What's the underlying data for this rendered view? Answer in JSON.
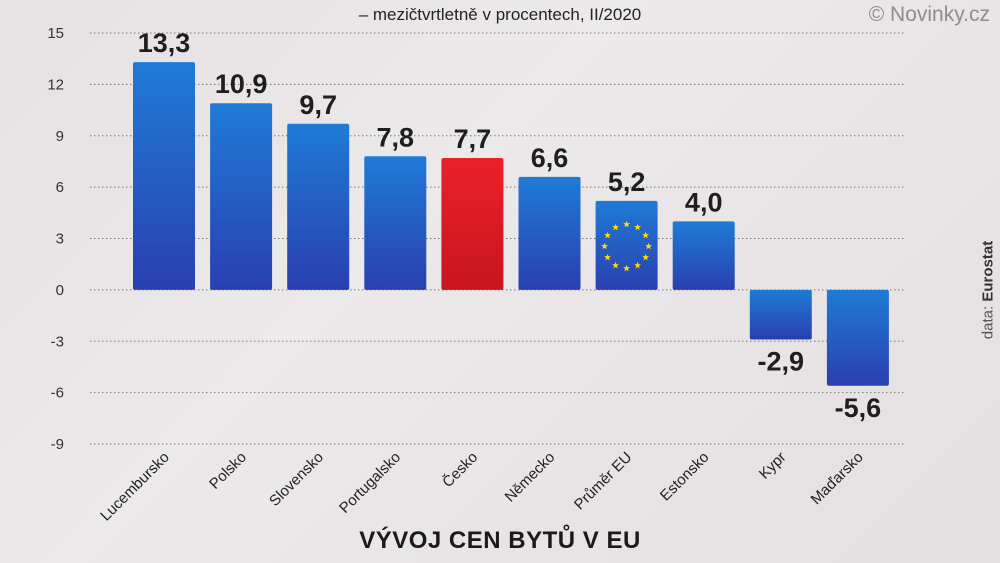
{
  "subtitle": "– mezičtvrtletně v procentech, II/2020",
  "copyright": "© Novinky.cz",
  "source": {
    "prefix": "data: ",
    "name": "Eurostat"
  },
  "colors": {
    "bar": "#1f5fc4",
    "highlight": "#e0202a",
    "grid": "#777777"
  },
  "chart_data": {
    "type": "bar",
    "title": "VÝVOJ CEN BYTŮ V EU",
    "subtitle": "– mezičtvrtletně v procentech, II/2020",
    "categories": [
      "Lucembursko",
      "Polsko",
      "Slovensko",
      "Portugalsko",
      "Česko",
      "Německo",
      "Průměr EU",
      "Estonsko",
      "Kypr",
      "Maďarsko"
    ],
    "values": [
      13.3,
      10.9,
      9.7,
      7.8,
      7.7,
      6.6,
      5.2,
      4.0,
      -2.9,
      -5.6
    ],
    "value_labels": [
      "13,3",
      "10,9",
      "9,7",
      "7,8",
      "7,7",
      "6,6",
      "5,2",
      "4,0",
      "-2,9",
      "-5,6"
    ],
    "highlight": "Česko",
    "eu_flag_on": "Průměr EU",
    "yticks": [
      15,
      12,
      9,
      6,
      3,
      0,
      -3,
      -6,
      -9
    ],
    "ytick_labels": [
      "15",
      "12",
      "9",
      "6",
      "3",
      "0",
      "-3",
      "-6",
      "-9"
    ],
    "ylim": [
      -9,
      15
    ],
    "grid": true,
    "xlabel": "",
    "ylabel": ""
  }
}
